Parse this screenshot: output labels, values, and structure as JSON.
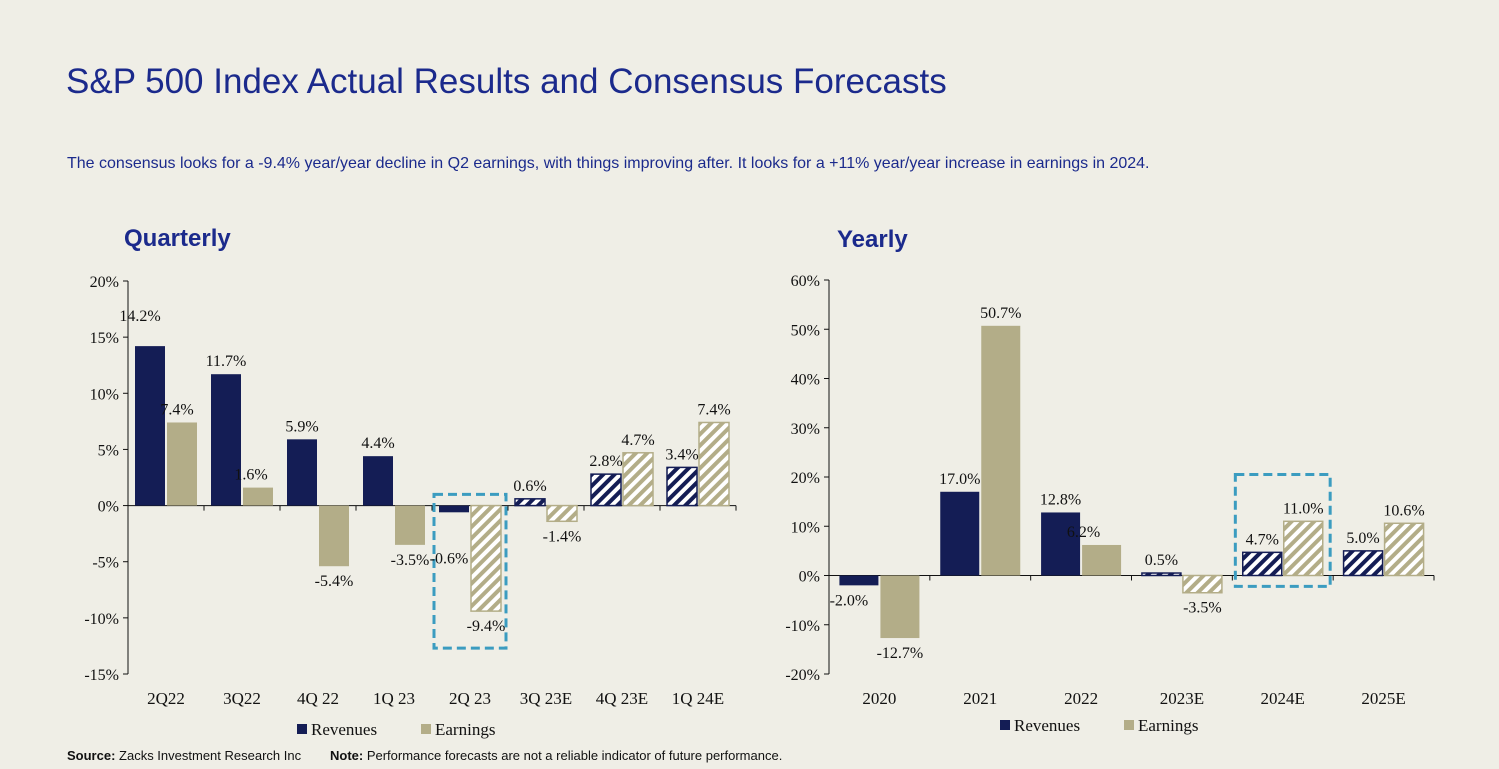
{
  "title": "S&P 500 Index Actual Results and Consensus Forecasts",
  "subtitle": "The consensus looks for a -9.4% year/year decline in Q2 earnings, with things improving after. It looks for a +11% year/year increase in earnings in 2024.",
  "footer": {
    "source_label": "Source:",
    "source_text": " Zacks Investment Research Inc",
    "note_label": "Note:",
    "note_text": "  Performance forecasts are not a reliable indicator of future performance."
  },
  "colors": {
    "revenues": "#141d55",
    "earnings": "#b3ad88",
    "highlight": "#3b9cc0",
    "text": "#1b2a8c"
  },
  "chart_data": [
    {
      "type": "bar",
      "title": "Quarterly",
      "categories": [
        "2Q22",
        "3Q22",
        "4Q 22",
        "1Q 23",
        "2Q 23",
        "3Q 23E",
        "4Q 23E",
        "1Q 24E"
      ],
      "series": [
        {
          "name": "Revenues",
          "values": [
            14.2,
            11.7,
            5.9,
            4.4,
            -0.6,
            0.6,
            2.8,
            3.4
          ]
        },
        {
          "name": "Earnings",
          "values": [
            7.4,
            1.6,
            -5.4,
            -3.5,
            -9.4,
            -1.4,
            4.7,
            7.4
          ]
        }
      ],
      "labels": {
        "Revenues": [
          "14.2%",
          "11.7%",
          "5.9%",
          "4.4%",
          "-0.6%",
          "0.6%",
          "2.8%",
          "3.4%"
        ],
        "Earnings": [
          "7.4%",
          "1.6%",
          "-5.4%",
          "-3.5%",
          "-9.4%",
          "-1.4%",
          "4.7%",
          "7.4%"
        ]
      },
      "forecast_from_index": 5,
      "hatched_earnings_from_index": 4,
      "highlight_category": "2Q 23",
      "ylim": [
        -15,
        20
      ],
      "yticks": [
        20,
        15,
        10,
        5,
        0,
        -5,
        -10,
        -15
      ],
      "ytick_labels": [
        "20%",
        "15%",
        "10%",
        "5%",
        "0%",
        "-5%",
        "-10%",
        "-15%"
      ],
      "legend": [
        "Revenues",
        "Earnings"
      ],
      "legend_position": "bottom",
      "grid": false
    },
    {
      "type": "bar",
      "title": "Yearly",
      "categories": [
        "2020",
        "2021",
        "2022",
        "2023E",
        "2024E",
        "2025E"
      ],
      "series": [
        {
          "name": "Revenues",
          "values": [
            -2.0,
            17.0,
            12.8,
            0.5,
            4.7,
            5.0
          ]
        },
        {
          "name": "Earnings",
          "values": [
            -12.7,
            50.7,
            6.2,
            -3.5,
            11.0,
            10.6
          ]
        }
      ],
      "labels": {
        "Revenues": [
          "-2.0%",
          "17.0%",
          "12.8%",
          "0.5%",
          "4.7%",
          "5.0%"
        ],
        "Earnings": [
          "-12.7%",
          "50.7%",
          "6.2%",
          "-3.5%",
          "11.0%",
          "10.6%"
        ]
      },
      "forecast_from_index": 3,
      "hatched_earnings_from_index": 3,
      "highlight_category": "2024E",
      "ylim": [
        -20,
        60
      ],
      "yticks": [
        60,
        50,
        40,
        30,
        20,
        10,
        0,
        -10,
        -20
      ],
      "ytick_labels": [
        "60%",
        "50%",
        "40%",
        "30%",
        "20%",
        "10%",
        "0%",
        "-10%",
        "-20%"
      ],
      "legend": [
        "Revenues",
        "Earnings"
      ],
      "legend_position": "bottom",
      "grid": false
    }
  ]
}
